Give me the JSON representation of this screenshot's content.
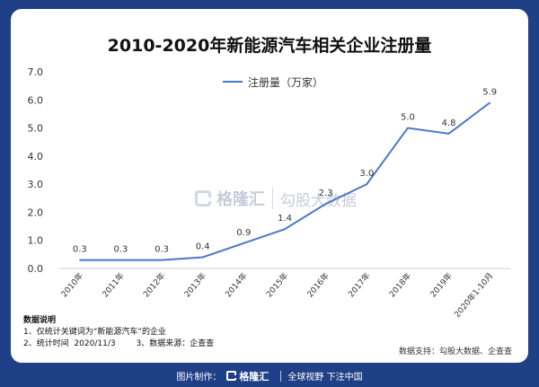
{
  "header": {
    "title": "2010-2020年新能源汽车相关企业注册量"
  },
  "legend": {
    "label": "注册量（万家）",
    "color": "#4a78c8"
  },
  "watermark": {
    "brand": "格隆汇",
    "partner": "勾股大数据"
  },
  "notes": {
    "title": "数据说明",
    "line1": "1、仅统计关键词为“新能源汽车”的企业",
    "line2": "2、统计时间  2020/11/3        3、数据来源：企查查"
  },
  "source": "数据支持：勾股大数据、企查查",
  "footer": {
    "prefix": "图片制作：",
    "brand": "格隆汇",
    "slogan": "全球视野 下注中国"
  },
  "chart_data": {
    "type": "line",
    "title": "2010-2020年新能源汽车相关企业注册量",
    "categories": [
      "2010年",
      "2011年",
      "2012年",
      "2013年",
      "2014年",
      "2015年",
      "2016年",
      "2017年",
      "2018年",
      "2019年",
      "2020年1-10月"
    ],
    "series": [
      {
        "name": "注册量（万家）",
        "values": [
          0.3,
          0.3,
          0.3,
          0.4,
          0.9,
          1.4,
          2.3,
          3.0,
          5.0,
          4.8,
          5.9
        ],
        "labels": [
          "0.3",
          "0.3",
          "0.3",
          "0.4",
          "0.9",
          "1.4",
          "2.3",
          "3.0",
          "5.0",
          "4.8",
          "5.9"
        ],
        "color": "#4a78c8"
      }
    ],
    "ylim": [
      0,
      7
    ],
    "yticks": [
      "0.0",
      "1.0",
      "2.0",
      "3.0",
      "4.0",
      "5.0",
      "6.0",
      "7.0"
    ],
    "grid": false,
    "legend_position": "top-center",
    "xlabel": "",
    "ylabel": ""
  }
}
